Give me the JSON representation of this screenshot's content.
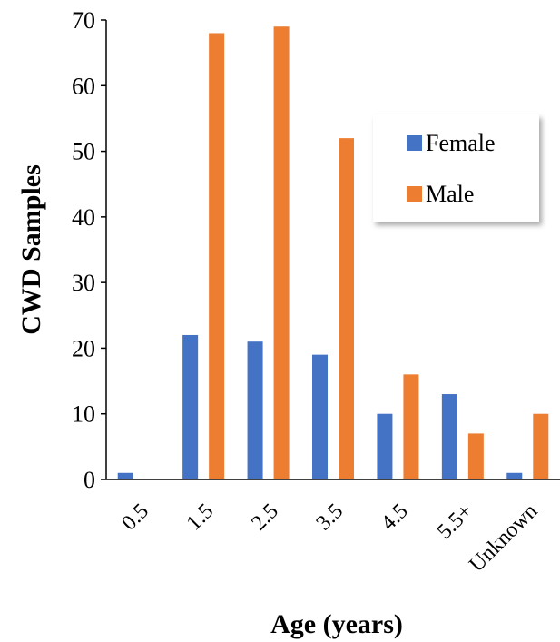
{
  "chart_data": {
    "type": "bar",
    "title": "",
    "xlabel": "Age (years)",
    "ylabel": "CWD Samples",
    "categories": [
      "0.5",
      "1.5",
      "2.5",
      "3.5",
      "4.5",
      "5.5+",
      "Unknown"
    ],
    "series": [
      {
        "name": "Female",
        "color": "#4472C4",
        "values": [
          1,
          22,
          21,
          19,
          10,
          13,
          1
        ]
      },
      {
        "name": "Male",
        "color": "#ED7D31",
        "values": [
          0,
          68,
          69,
          52,
          16,
          7,
          10
        ]
      }
    ],
    "ylim": [
      0,
      70
    ],
    "yticks": [
      0,
      10,
      20,
      30,
      40,
      50,
      60,
      70
    ],
    "grid": false,
    "legend_position": "top-right"
  }
}
